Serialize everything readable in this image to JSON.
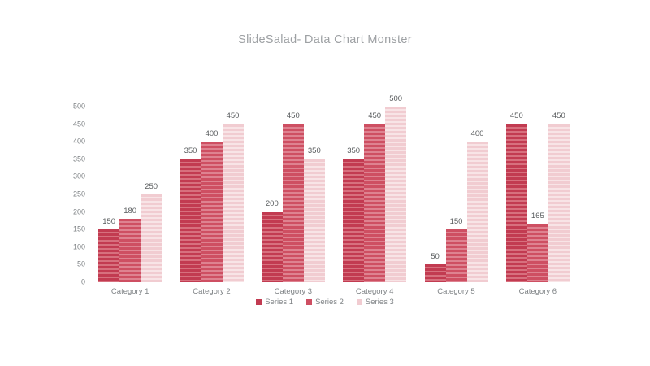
{
  "chart_data": {
    "type": "bar",
    "title": "SlideSalad-  Data Chart Monster",
    "categories": [
      "Category 1",
      "Category 2",
      "Category 3",
      "Category 4",
      "Category 5",
      "Category 6"
    ],
    "series": [
      {
        "name": "Series 1",
        "values": [
          150,
          350,
          200,
          350,
          50,
          450
        ],
        "color": "#c23b51",
        "stripe_color": "#d7707e"
      },
      {
        "name": "Series 2",
        "values": [
          180,
          400,
          450,
          450,
          150,
          165
        ],
        "color": "#ce4f62",
        "stripe_color": "#de8290"
      },
      {
        "name": "Series 3",
        "values": [
          250,
          450,
          350,
          500,
          400,
          450
        ],
        "color": "#f1ccd1",
        "stripe_color": "#f8e4e6"
      }
    ],
    "y_ticks": [
      0,
      50,
      100,
      150,
      200,
      250,
      300,
      350,
      400,
      450,
      500
    ],
    "ylim": [
      0,
      500
    ],
    "grid": false,
    "axis_lines": false,
    "legend_position": "bottom",
    "value_labels_shown": true,
    "text_colors": {
      "title": "#9ea1a4",
      "ticks": "#7f8386",
      "values": "#595c5e"
    },
    "background": "#ffffff"
  }
}
